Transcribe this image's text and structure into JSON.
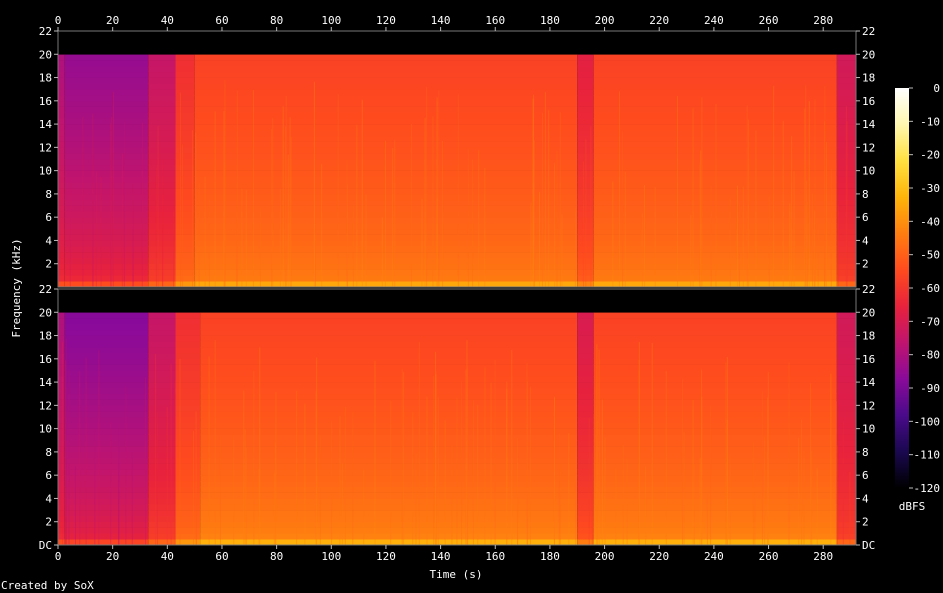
{
  "chart_data": {
    "type": "heatmap",
    "xlabel": "Time (s)",
    "ylabel": "Frequency (kHz)",
    "footer": "Created by SoX",
    "colorbar_label": "dBFS",
    "x_ticks": [
      0,
      20,
      40,
      60,
      80,
      100,
      120,
      140,
      160,
      180,
      200,
      220,
      240,
      260,
      280
    ],
    "xlim": [
      0,
      292
    ],
    "ylim": [
      0,
      22
    ],
    "y_tick_labels": [
      "DC",
      "2",
      "4",
      "6",
      "8",
      "10",
      "12",
      "14",
      "16",
      "18",
      "20",
      "22"
    ],
    "y_tick_values": [
      0,
      2,
      4,
      6,
      8,
      10,
      12,
      14,
      16,
      18,
      20,
      22
    ],
    "colorbar_ticks": [
      0,
      -10,
      -20,
      -30,
      -40,
      -50,
      -60,
      -70,
      -80,
      -90,
      -100,
      -110,
      -120
    ],
    "colorbar_range": [
      -120,
      0
    ],
    "colormap": [
      "#000000",
      "#1a0850",
      "#4a0a8a",
      "#8a0a9a",
      "#c0146e",
      "#e8223c",
      "#ff4b1e",
      "#ff7d10",
      "#ffb40a",
      "#ffe040",
      "#fff7b0",
      "#ffffff"
    ],
    "channels": [
      {
        "name": "",
        "segments": [
          {
            "t": [
              0,
              2.5
            ],
            "level": [
              -60,
              -80
            ]
          },
          {
            "t": [
              2.5,
              33
            ],
            "level": [
              -60,
              -85
            ]
          },
          {
            "t": [
              33,
              43
            ],
            "level": [
              -55,
              -75
            ]
          },
          {
            "t": [
              43,
              50
            ],
            "level": [
              -45,
              -62
            ]
          },
          {
            "t": [
              50,
              190
            ],
            "level": [
              -42,
              -57
            ]
          },
          {
            "t": [
              190,
              196
            ],
            "level": [
              -48,
              -67
            ]
          },
          {
            "t": [
              196,
              285
            ],
            "level": [
              -42,
              -57
            ]
          },
          {
            "t": [
              285,
              292
            ],
            "level": [
              -55,
              -72
            ]
          }
        ]
      },
      {
        "name": "",
        "segments": [
          {
            "t": [
              0,
              2.5
            ],
            "level": [
              -60,
              -80
            ]
          },
          {
            "t": [
              2.5,
              33
            ],
            "level": [
              -62,
              -88
            ]
          },
          {
            "t": [
              33,
              43
            ],
            "level": [
              -55,
              -75
            ]
          },
          {
            "t": [
              43,
              52
            ],
            "level": [
              -45,
              -62
            ]
          },
          {
            "t": [
              52,
              190
            ],
            "level": [
              -40,
              -57
            ]
          },
          {
            "t": [
              190,
              196
            ],
            "level": [
              -50,
              -70
            ]
          },
          {
            "t": [
              196,
              285
            ],
            "level": [
              -40,
              -57
            ]
          },
          {
            "t": [
              285,
              292
            ],
            "level": [
              -55,
              -72
            ]
          }
        ]
      }
    ]
  }
}
